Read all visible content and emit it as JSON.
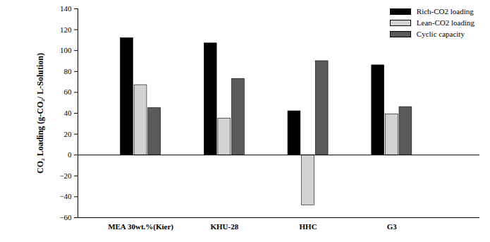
{
  "chart_data": {
    "type": "bar",
    "categories": [
      "MEA 30wt.%(Kier)",
      "KHU-28",
      "HHC",
      "G3"
    ],
    "series": [
      {
        "name": "Rich-CO2 loading",
        "color": "#000000",
        "values": [
          112,
          107,
          42,
          86
        ]
      },
      {
        "name": "Lean-CO2 loading",
        "color": "#d3d3d3",
        "values": [
          67,
          35,
          -48,
          39
        ]
      },
      {
        "name": "Cyclic capacity",
        "color": "#5a5a5a",
        "values": [
          45,
          73,
          90,
          46
        ]
      }
    ],
    "y_label": "CO₂ Loading (g-CO₂/ L-Solution)",
    "ylim": [
      -60,
      140
    ],
    "yticks": [
      -60,
      -40,
      -20,
      0,
      20,
      40,
      60,
      80,
      100,
      120,
      140
    ],
    "grid": false,
    "legend": "top-right"
  }
}
